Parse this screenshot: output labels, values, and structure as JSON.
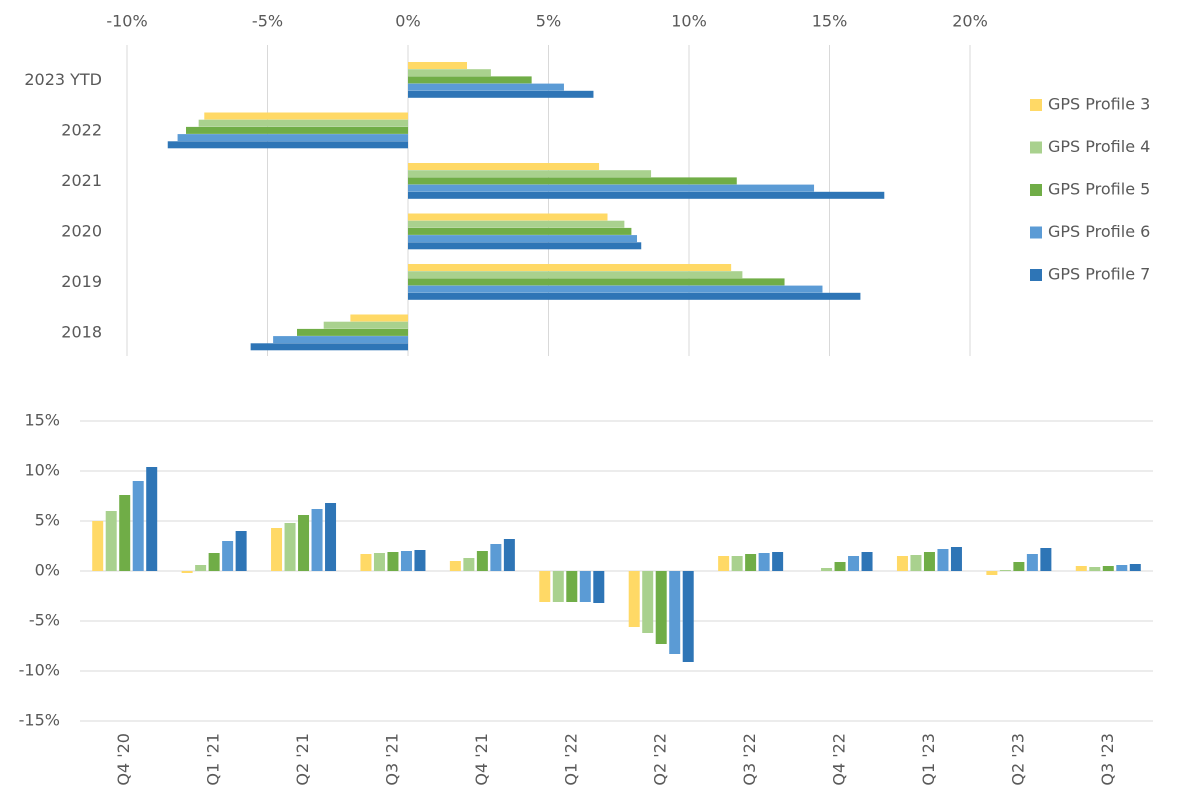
{
  "chart_data": [
    {
      "type": "bar",
      "orientation": "horizontal",
      "categories": [
        "2023 YTD",
        "2022",
        "2021",
        "2020",
        "2019",
        "2018"
      ],
      "series": [
        {
          "name": "GPS Profile 3",
          "color": "#ffd966",
          "values": [
            2.1,
            -7.25,
            6.8,
            7.1,
            11.5,
            -2.05
          ]
        },
        {
          "name": "GPS Profile 4",
          "color": "#a9d18e",
          "values": [
            2.95,
            -7.45,
            8.65,
            7.7,
            11.9,
            -3.0
          ]
        },
        {
          "name": "GPS Profile 5",
          "color": "#70ad47",
          "values": [
            4.4,
            -7.9,
            11.7,
            7.95,
            13.4,
            -3.95
          ]
        },
        {
          "name": "GPS Profile 6",
          "color": "#5b9bd5",
          "values": [
            5.55,
            -8.2,
            14.45,
            8.15,
            14.75,
            -4.8
          ]
        },
        {
          "name": "GPS Profile 7",
          "color": "#2e75b6",
          "values": [
            6.6,
            -8.55,
            16.95,
            8.3,
            16.1,
            -5.6
          ]
        }
      ],
      "xlim": [
        -10,
        20
      ],
      "xticks": [
        {
          "value": -10,
          "label": "-10%"
        },
        {
          "value": -5,
          "label": "-5%"
        },
        {
          "value": 0,
          "label": "0%"
        },
        {
          "value": 5,
          "label": "5%"
        },
        {
          "value": 10,
          "label": "10%"
        },
        {
          "value": 15,
          "label": "15%"
        },
        {
          "value": 20,
          "label": "20%"
        }
      ],
      "grid": true,
      "legend": "right"
    },
    {
      "type": "bar",
      "orientation": "vertical",
      "categories": [
        "Q4 '20",
        "Q1 '21",
        "Q2 '21",
        "Q3 '21",
        "Q4 '21",
        "Q1 '22",
        "Q2 '22",
        "Q3 '22",
        "Q4 '22",
        "Q1 '23",
        "Q2 '23",
        "Q3 '23"
      ],
      "series": [
        {
          "color": "#ffd966",
          "values": [
            5.0,
            -0.2,
            4.3,
            1.7,
            1.0,
            -3.1,
            -5.6,
            1.5,
            0.0,
            1.5,
            -0.4,
            0.5
          ]
        },
        {
          "color": "#a9d18e",
          "values": [
            6.0,
            0.6,
            4.8,
            1.8,
            1.3,
            -3.1,
            -6.2,
            1.5,
            0.3,
            1.6,
            0.1,
            0.4
          ]
        },
        {
          "color": "#70ad47",
          "values": [
            7.6,
            1.8,
            5.6,
            1.9,
            2.0,
            -3.1,
            -7.3,
            1.7,
            0.9,
            1.9,
            0.9,
            0.5
          ]
        },
        {
          "color": "#5b9bd5",
          "values": [
            9.0,
            3.0,
            6.2,
            2.0,
            2.7,
            -3.1,
            -8.3,
            1.8,
            1.5,
            2.2,
            1.7,
            0.6
          ]
        },
        {
          "color": "#2e75b6",
          "values": [
            10.4,
            4.0,
            6.8,
            2.1,
            3.2,
            -3.2,
            -9.1,
            1.9,
            1.9,
            2.4,
            2.3,
            0.7
          ]
        }
      ],
      "ylim": [
        -15,
        15
      ],
      "yticks": [
        {
          "value": -15,
          "label": "-15%"
        },
        {
          "value": -10,
          "label": "-10%"
        },
        {
          "value": -5,
          "label": "-5%"
        },
        {
          "value": 0,
          "label": "0%"
        },
        {
          "value": 5,
          "label": "5%"
        },
        {
          "value": 10,
          "label": "10%"
        },
        {
          "value": 15,
          "label": "15%"
        }
      ],
      "grid": true
    }
  ]
}
